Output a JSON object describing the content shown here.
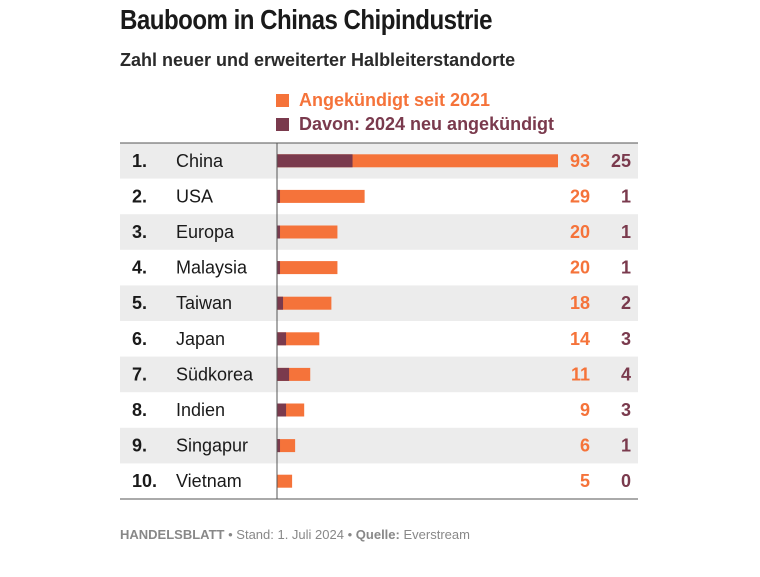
{
  "title": "Bauboom in Chinas Chipindustrie",
  "subtitle": "Zahl neuer und erweiterter Halbleiterstandorte",
  "legend": [
    {
      "label": "Angekündigt seit 2021",
      "color": "#f5733a"
    },
    {
      "label": "Davon: 2024 neu angekündigt",
      "color": "#7a3a4d"
    }
  ],
  "footer": {
    "brand": "HANDELSBLATT",
    "stand": "Stand: 1. Juli 2024",
    "source_label": "Quelle:",
    "source": "Everstream"
  },
  "chart_data": {
    "type": "bar",
    "orientation": "horizontal",
    "title": "Bauboom in Chinas Chipindustrie",
    "subtitle": "Zahl neuer und erweiterter Halbleiterstandorte",
    "ranks": [
      "1.",
      "2.",
      "3.",
      "4.",
      "5.",
      "6.",
      "7.",
      "8.",
      "9.",
      "10."
    ],
    "categories": [
      "China",
      "USA",
      "Europa",
      "Malaysia",
      "Taiwan",
      "Japan",
      "Südkorea",
      "Indien",
      "Singapur",
      "Vietnam"
    ],
    "series": [
      {
        "name": "Angekündigt seit 2021",
        "color": "#f5733a",
        "values": [
          93,
          29,
          20,
          20,
          18,
          14,
          11,
          9,
          6,
          5
        ]
      },
      {
        "name": "Davon: 2024 neu angekündigt",
        "color": "#7a3a4d",
        "values": [
          25,
          1,
          1,
          1,
          2,
          3,
          4,
          3,
          1,
          0
        ]
      }
    ],
    "overlay": true,
    "xlim": [
      0,
      93
    ],
    "grid": false,
    "legend_position": "top",
    "row_stripes": true,
    "stripe_color": "#ececec"
  }
}
